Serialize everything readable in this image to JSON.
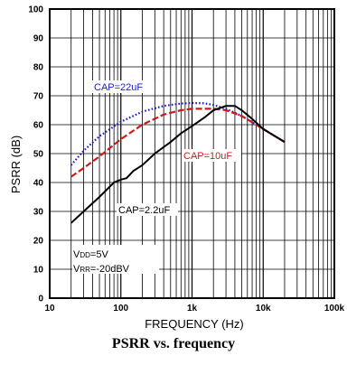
{
  "caption": "PSRR vs. frequency",
  "chart_data": {
    "type": "line",
    "xlabel": "FREQUENCY (Hz)",
    "ylabel": "PSRR (dB)",
    "xscale": "log",
    "xlim": [
      10,
      100000
    ],
    "ylim": [
      0,
      100
    ],
    "xticks": [
      {
        "value": 10,
        "label": "10"
      },
      {
        "value": 100,
        "label": "100"
      },
      {
        "value": 1000,
        "label": "1k"
      },
      {
        "value": 10000,
        "label": "10k"
      },
      {
        "value": 100000,
        "label": "100k"
      }
    ],
    "yticks": [
      0,
      10,
      20,
      30,
      40,
      50,
      60,
      70,
      80,
      90,
      100
    ],
    "grid": true,
    "series": [
      {
        "name": "CAP=22uF",
        "color": "#1a1acc",
        "dash": "dotted",
        "points": [
          [
            20,
            46
          ],
          [
            30,
            51
          ],
          [
            50,
            56
          ],
          [
            100,
            61
          ],
          [
            200,
            64.5
          ],
          [
            400,
            66.5
          ],
          [
            700,
            67.3
          ],
          [
            1000,
            67.5
          ],
          [
            1500,
            67.4
          ],
          [
            2000,
            66.8
          ],
          [
            3000,
            65.5
          ],
          [
            5000,
            63
          ],
          [
            10000,
            58.5
          ],
          [
            20000,
            54
          ]
        ]
      },
      {
        "name": "CAP=10uF",
        "color": "#cc1a1a",
        "dash": "dashed",
        "points": [
          [
            20,
            42
          ],
          [
            30,
            45
          ],
          [
            50,
            49
          ],
          [
            100,
            55
          ],
          [
            200,
            60
          ],
          [
            400,
            63.5
          ],
          [
            700,
            65
          ],
          [
            1000,
            65.5
          ],
          [
            2000,
            65.5
          ],
          [
            3000,
            65
          ],
          [
            5000,
            63
          ],
          [
            10000,
            58.5
          ],
          [
            20000,
            54
          ]
        ]
      },
      {
        "name": "CAP=2.2uF",
        "color": "#000000",
        "dash": "solid",
        "points": [
          [
            20,
            26
          ],
          [
            30,
            30
          ],
          [
            50,
            35
          ],
          [
            80,
            40
          ],
          [
            100,
            41
          ],
          [
            120,
            41.5
          ],
          [
            150,
            44
          ],
          [
            200,
            46
          ],
          [
            300,
            50
          ],
          [
            500,
            54
          ],
          [
            700,
            57
          ],
          [
            1000,
            59.5
          ],
          [
            1500,
            62.5
          ],
          [
            2000,
            65
          ],
          [
            3000,
            66.5
          ],
          [
            4000,
            66.5
          ],
          [
            5000,
            65
          ],
          [
            7000,
            62
          ],
          [
            10000,
            58.5
          ],
          [
            20000,
            54
          ]
        ]
      }
    ],
    "annotations": [
      "CAP=22uF",
      "CAP=10uF",
      "CAP=2.2uF"
    ],
    "conditions": {
      "vdd_base": "V",
      "vdd_sub": "DD",
      "vdd_val": "=5V",
      "vrr_base": "V",
      "vrr_sub": "RR",
      "vrr_val": "=-20dBV"
    }
  }
}
